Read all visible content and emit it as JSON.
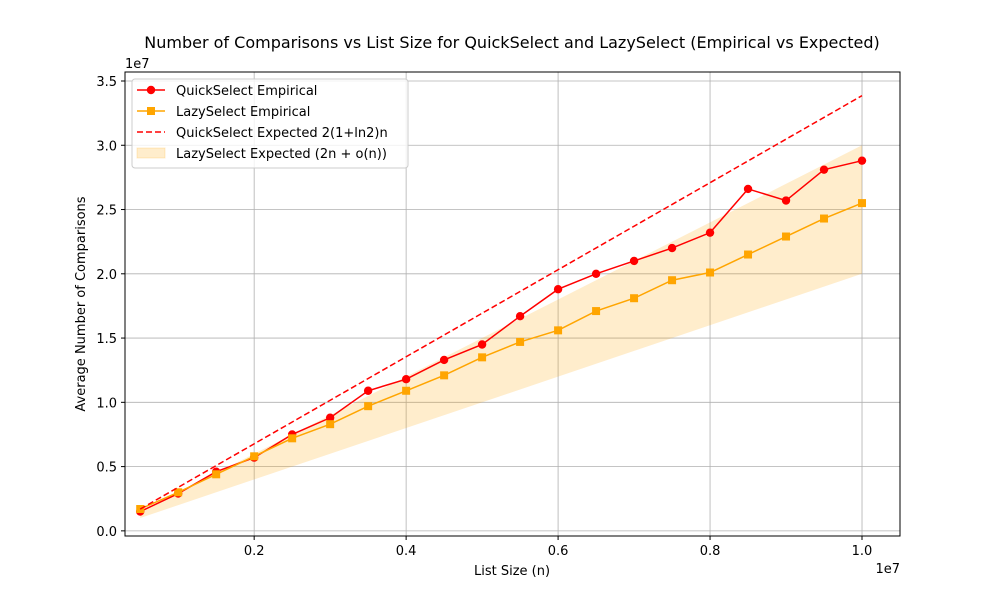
{
  "chart_data": {
    "type": "line",
    "title": "Number of Comparisons vs List Size for QuickSelect and LazySelect (Empirical vs Expected)",
    "xlabel": "List Size (n)",
    "ylabel": "Average Number of Comparisons",
    "x_offset_text": "1e7",
    "y_offset_text": "1e7",
    "xlim": [
      0.03,
      1.05
    ],
    "ylim": [
      -0.04,
      3.57
    ],
    "x_ticks": [
      0.2,
      0.4,
      0.6,
      0.8,
      1.0
    ],
    "x_tick_labels": [
      "0.2",
      "0.4",
      "0.6",
      "0.8",
      "1.0"
    ],
    "y_ticks": [
      0.0,
      0.5,
      1.0,
      1.5,
      2.0,
      2.5,
      3.0,
      3.5
    ],
    "y_tick_labels": [
      "0.0",
      "0.5",
      "1.0",
      "1.5",
      "2.0",
      "2.5",
      "3.0",
      "3.5"
    ],
    "grid": true,
    "legend_position": "top-left",
    "x": [
      0.05,
      0.1,
      0.15,
      0.2,
      0.25,
      0.3,
      0.35,
      0.4,
      0.45,
      0.5,
      0.55,
      0.6,
      0.65,
      0.7,
      0.75,
      0.8,
      0.85,
      0.9,
      0.95,
      1.0
    ],
    "series": [
      {
        "name": "QuickSelect Empirical",
        "color": "#ff0000",
        "marker": "circle",
        "style": "solid",
        "values": [
          0.15,
          0.29,
          0.46,
          0.57,
          0.75,
          0.88,
          1.09,
          1.18,
          1.33,
          1.45,
          1.67,
          1.88,
          2.0,
          2.1,
          2.2,
          2.32,
          2.66,
          2.57,
          2.81,
          2.88
        ]
      },
      {
        "name": "LazySelect Empirical",
        "color": "#ffa500",
        "marker": "square",
        "style": "solid",
        "values": [
          0.17,
          0.3,
          0.44,
          0.58,
          0.72,
          0.83,
          0.97,
          1.09,
          1.21,
          1.35,
          1.47,
          1.56,
          1.71,
          1.81,
          1.95,
          2.01,
          2.15,
          2.29,
          2.43,
          2.55
        ]
      },
      {
        "name": "QuickSelect Expected 2(1+ln2)n",
        "color": "#ff0000",
        "style": "dashed",
        "slope": 3.386
      }
    ],
    "band": {
      "name": "LazySelect Expected (2n + o(n))",
      "color": "#ffa500",
      "lower_slope": 2.0,
      "upper_slope": 3.0
    }
  }
}
